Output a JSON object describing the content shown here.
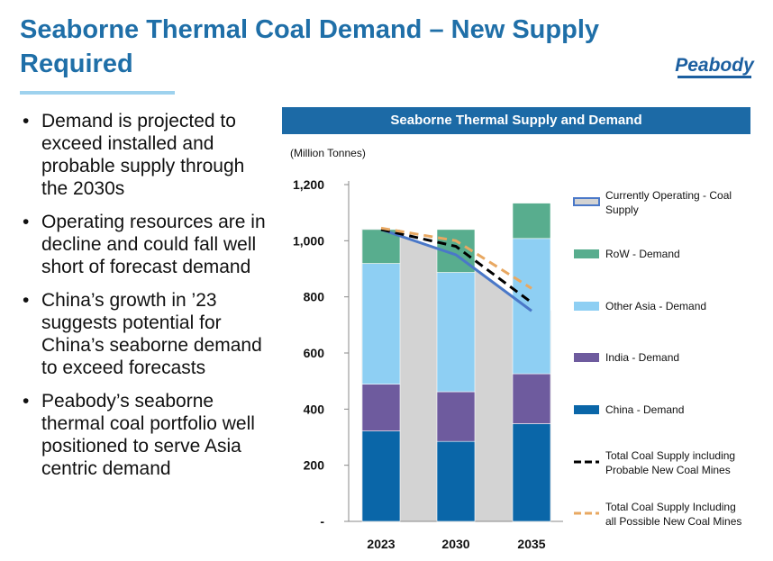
{
  "page": {
    "title": "Seaborne Thermal Coal Demand – New Supply Required",
    "logo_text": "Peabody"
  },
  "bullets": [
    "Demand is projected to exceed installed and probable supply through the 2030s",
    "Operating resources are in decline and could fall well short of forecast demand",
    "China’s growth in ’23 suggests potential for China’s seaborne demand to exceed forecasts",
    "Peabody’s seaborne thermal coal portfolio well positioned to serve Asia centric demand"
  ],
  "colors": {
    "title": "#1f6fa8",
    "china": "#0a66a8",
    "india": "#6e5b9e",
    "other_asia": "#8ecff3",
    "row": "#58ad8e",
    "operating": "#4a78c8",
    "probable": "#000000",
    "possible": "#e8a862",
    "supply_fill": "#d3d3d3"
  },
  "chart_data": {
    "type": "bar",
    "title": "Seaborne Thermal Supply and Demand",
    "ylabel": "(Million Tonnes)",
    "xlabel": "",
    "ylim": [
      0,
      1200
    ],
    "yticks": [
      0,
      200,
      400,
      600,
      800,
      1000,
      1200
    ],
    "ytick_labels": [
      "-",
      "200",
      "400",
      "600",
      "800",
      "1,000",
      "1,200"
    ],
    "categories": [
      "2023",
      "2030",
      "2035"
    ],
    "stacked_series": [
      {
        "name": "China - Demand",
        "color_key": "china",
        "values": [
          322,
          285,
          348
        ]
      },
      {
        "name": "India - Demand",
        "color_key": "india",
        "values": [
          167,
          177,
          178
        ]
      },
      {
        "name": "Other Asia - Demand",
        "color_key": "other_asia",
        "values": [
          430,
          425,
          482
        ]
      },
      {
        "name": "RoW - Demand",
        "color_key": "row",
        "values": [
          121,
          153,
          126
        ]
      }
    ],
    "line_series": [
      {
        "name": "Currently Operating - Coal Supply",
        "color_key": "operating",
        "style": "solid",
        "values": [
          1040,
          950,
          750
        ]
      },
      {
        "name": "Total Coal Supply including Probable New Coal Mines",
        "color_key": "probable",
        "style": "dashed",
        "values": [
          1040,
          980,
          780
        ]
      },
      {
        "name": "Total Coal Supply Including all Possible New Coal Mines",
        "color_key": "possible",
        "style": "dashed",
        "values": [
          1045,
          1000,
          830
        ]
      }
    ],
    "legend": [
      {
        "label": "Currently Operating - Coal Supply",
        "kind": "area-line",
        "color_key": "operating"
      },
      {
        "label": "RoW - Demand",
        "kind": "swatch",
        "color_key": "row"
      },
      {
        "label": "Other Asia - Demand",
        "kind": "swatch",
        "color_key": "other_asia"
      },
      {
        "label": "India - Demand",
        "kind": "swatch",
        "color_key": "india"
      },
      {
        "label": "China - Demand",
        "kind": "swatch",
        "color_key": "china"
      },
      {
        "label": "Total Coal Supply including Probable New Coal Mines",
        "kind": "dash",
        "color_key": "probable"
      },
      {
        "label": "Total Coal Supply Including all Possible New Coal Mines",
        "kind": "dash",
        "color_key": "possible"
      }
    ],
    "legend_position": "right"
  }
}
